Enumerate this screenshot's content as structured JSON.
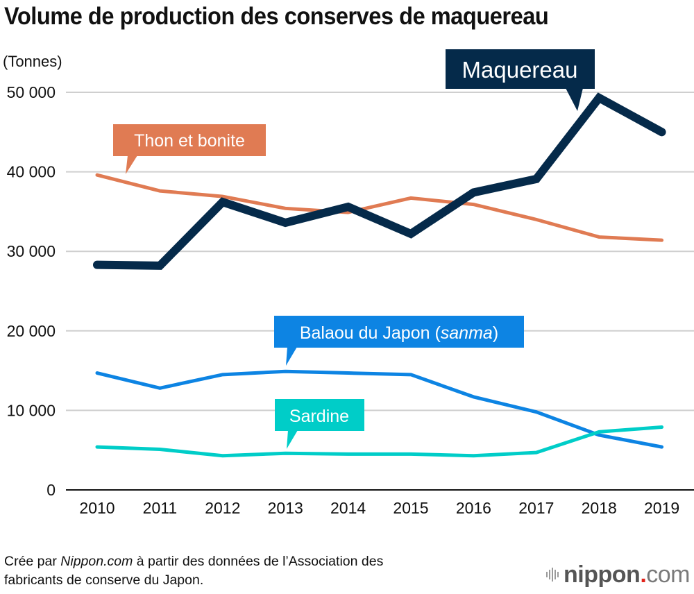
{
  "chart_data": {
    "type": "line",
    "title": "Volume de production des conserves de maquereau",
    "ylabel": "(Tonnes)",
    "xlabel": "",
    "ylim": [
      0,
      50000
    ],
    "yticks": [
      0,
      10000,
      20000,
      30000,
      40000,
      50000
    ],
    "ytick_labels": [
      "0",
      "10 000",
      "20 000",
      "30 000",
      "40 000",
      "50 000"
    ],
    "grid": true,
    "legend": "inline callouts",
    "x": [
      "2010",
      "2011",
      "2012",
      "2013",
      "2014",
      "2015",
      "2016",
      "2017",
      "2018",
      "2019"
    ],
    "series": [
      {
        "name": "Thon et bonite",
        "label_parts": [
          {
            "text": "Thon et bonite",
            "italic": false
          }
        ],
        "color": "#e07b53",
        "values": [
          39600,
          37600,
          36900,
          35400,
          34900,
          36700,
          35900,
          34000,
          31800,
          31400
        ],
        "callout_year": "2010"
      },
      {
        "name": "Maquereau",
        "label_parts": [
          {
            "text": "Maquereau",
            "italic": false
          }
        ],
        "color": "#052a4a",
        "values": [
          28300,
          28200,
          36200,
          33600,
          35600,
          32200,
          37400,
          39100,
          49300,
          45000
        ],
        "callout_year": "2018"
      },
      {
        "name": "Balaou du Japon (sanma)",
        "label_parts": [
          {
            "text": "Balaou du Japon (",
            "italic": false
          },
          {
            "text": "sanma",
            "italic": true
          },
          {
            "text": ")",
            "italic": false
          }
        ],
        "color": "#0d84e3",
        "values": [
          14700,
          12800,
          14500,
          14900,
          14700,
          14500,
          11700,
          9800,
          6900,
          5400
        ],
        "callout_year": "2013"
      },
      {
        "name": "Sardine",
        "label_parts": [
          {
            "text": "Sardine",
            "italic": false
          }
        ],
        "color": "#00cdc8",
        "values": [
          5400,
          5100,
          4300,
          4600,
          4500,
          4500,
          4300,
          4700,
          7300,
          7900
        ],
        "callout_year": "2013"
      }
    ]
  },
  "footer": {
    "source_prefix": "Crée par ",
    "source_brand": "Nippon.com",
    "source_suffix": " à partir des données de l’Association des",
    "source_line2": "fabricants de conserve du Japon."
  },
  "logo": {
    "name": "nippon",
    "dot": ".",
    "tld": "com"
  }
}
